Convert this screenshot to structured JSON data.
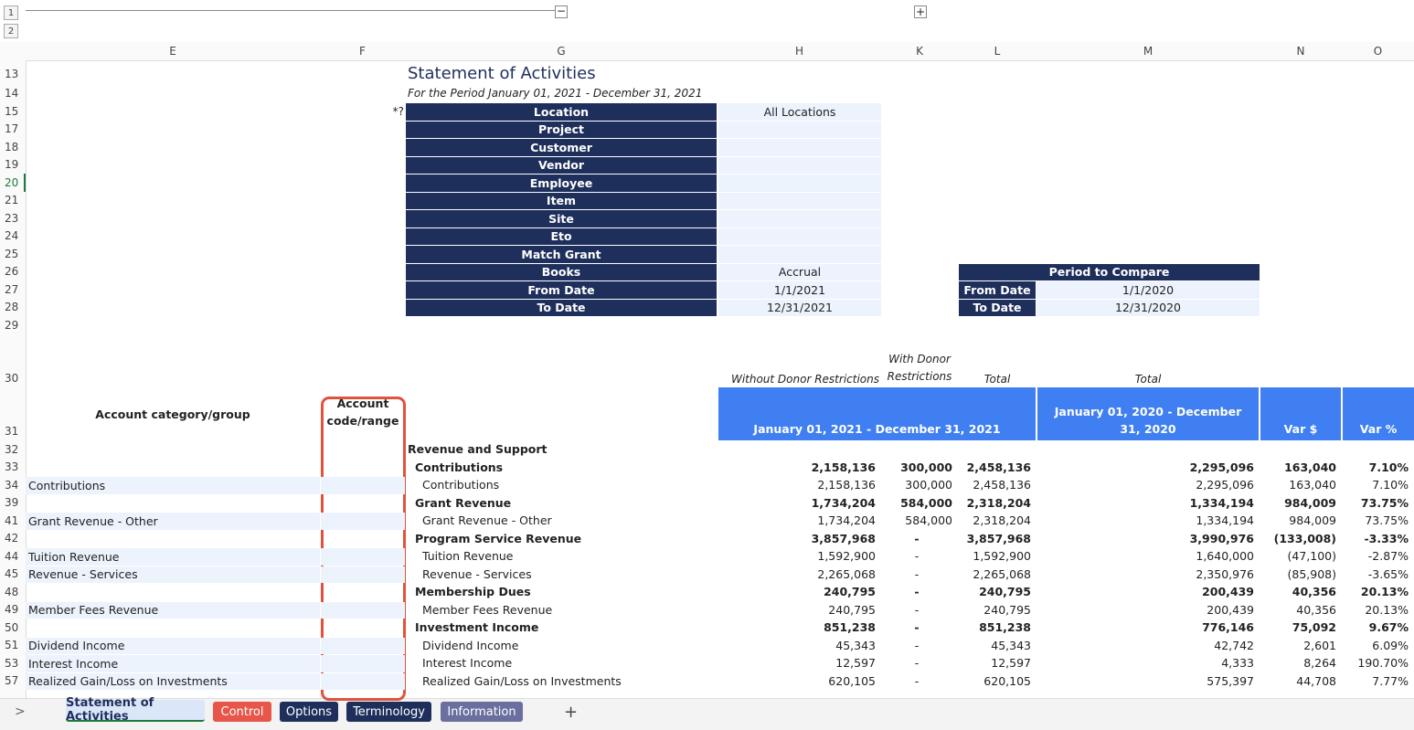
{
  "outline_levels": [
    "1",
    "2"
  ],
  "columns": [
    "E",
    "F",
    "G",
    "H",
    "K",
    "L",
    "M",
    "N",
    "O"
  ],
  "row_numbers": [
    "13",
    "14",
    "15",
    "17",
    "18",
    "19",
    "20",
    "21",
    "23",
    "24",
    "25",
    "26",
    "27",
    "28",
    "29",
    "30",
    "31",
    "32",
    "33",
    "34",
    "39",
    "41",
    "42",
    "44",
    "45",
    "48",
    "49",
    "50",
    "51",
    "53",
    "57"
  ],
  "report": {
    "title": "Statement of Activities",
    "period": "For the Period January 01, 2021 - December 31, 2021",
    "marker": "*?",
    "params": [
      {
        "label": "Location",
        "value": "All Locations"
      },
      {
        "label": "Project"
      },
      {
        "label": "Customer"
      },
      {
        "label": "Vendor"
      },
      {
        "label": "Employee"
      },
      {
        "label": "Item"
      },
      {
        "label": "Site"
      },
      {
        "label": "Eto"
      },
      {
        "label": "Match Grant"
      },
      {
        "label": "Books",
        "value": "Accrual"
      },
      {
        "label": "From Date",
        "value": "1/1/2021"
      },
      {
        "label": "To Date",
        "value": "12/31/2021"
      }
    ],
    "compare": {
      "title": "Period to Compare",
      "rows": [
        {
          "label": "From Date",
          "value": "1/1/2020"
        },
        {
          "label": "To Date",
          "value": "12/31/2020"
        }
      ]
    },
    "subheaders": [
      "Without Donor Restrictions",
      "With Donor Restrictions",
      "Total",
      "Total"
    ],
    "headers": {
      "category": "Account category/group",
      "code": "Account code/range",
      "current": "January 01, 2021 - December 31, 2021",
      "prior": "January 01, 2020 - December 31, 2020",
      "var_amount": "Var $",
      "var_pct": "Var %"
    },
    "rows": [
      {
        "name": "Revenue and Support",
        "bold": true,
        "indent": 0
      },
      {
        "name": "Contributions",
        "bold": true,
        "indent": 1,
        "values": [
          "2,158,136",
          "300,000",
          "2,458,136",
          "2,295,096",
          "163,040",
          "7.10%"
        ]
      },
      {
        "category": "Contributions",
        "name": "Contributions",
        "indent": 2,
        "values": [
          "2,158,136",
          "300,000",
          "2,458,136",
          "2,295,096",
          "163,040",
          "7.10%"
        ]
      },
      {
        "name": "Grant Revenue",
        "bold": true,
        "indent": 1,
        "values": [
          "1,734,204",
          "584,000",
          "2,318,204",
          "1,334,194",
          "984,009",
          "73.75%"
        ]
      },
      {
        "category": "Grant Revenue - Other",
        "name": "Grant Revenue - Other",
        "indent": 2,
        "values": [
          "1,734,204",
          "584,000",
          "2,318,204",
          "1,334,194",
          "984,009",
          "73.75%"
        ]
      },
      {
        "name": "Program Service Revenue",
        "bold": true,
        "indent": 1,
        "values": [
          "3,857,968",
          "-",
          "3,857,968",
          "3,990,976",
          "(133,008)",
          "-3.33%"
        ]
      },
      {
        "category": "Tuition Revenue",
        "name": "Tuition Revenue",
        "indent": 2,
        "values": [
          "1,592,900",
          "-",
          "1,592,900",
          "1,640,000",
          "(47,100)",
          "-2.87%"
        ]
      },
      {
        "category": "Revenue - Services",
        "name": "Revenue - Services",
        "indent": 2,
        "values": [
          "2,265,068",
          "-",
          "2,265,068",
          "2,350,976",
          "(85,908)",
          "-3.65%"
        ]
      },
      {
        "name": "Membership Dues",
        "bold": true,
        "indent": 1,
        "values": [
          "240,795",
          "-",
          "240,795",
          "200,439",
          "40,356",
          "20.13%"
        ]
      },
      {
        "category": "Member Fees Revenue",
        "name": "Member Fees Revenue",
        "indent": 2,
        "values": [
          "240,795",
          "-",
          "240,795",
          "200,439",
          "40,356",
          "20.13%"
        ]
      },
      {
        "name": "Investment Income",
        "bold": true,
        "indent": 1,
        "values": [
          "851,238",
          "-",
          "851,238",
          "776,146",
          "75,092",
          "9.67%"
        ]
      },
      {
        "category": "Dividend Income",
        "name": "Dividend Income",
        "indent": 2,
        "values": [
          "45,343",
          "-",
          "45,343",
          "42,742",
          "2,601",
          "6.09%"
        ]
      },
      {
        "category": "Interest Income",
        "name": "Interest Income",
        "indent": 2,
        "values": [
          "12,597",
          "-",
          "12,597",
          "4,333",
          "8,264",
          "190.70%"
        ]
      },
      {
        "category": "Realized Gain/Loss on Investments",
        "name": "Realized Gain/Loss on Investments",
        "indent": 2,
        "values": [
          "620,105",
          "-",
          "620,105",
          "575,397",
          "44,708",
          "7.77%"
        ]
      }
    ]
  },
  "tabs": [
    "Statement of Activities",
    "Control",
    "Options",
    "Terminology",
    "Information"
  ]
}
